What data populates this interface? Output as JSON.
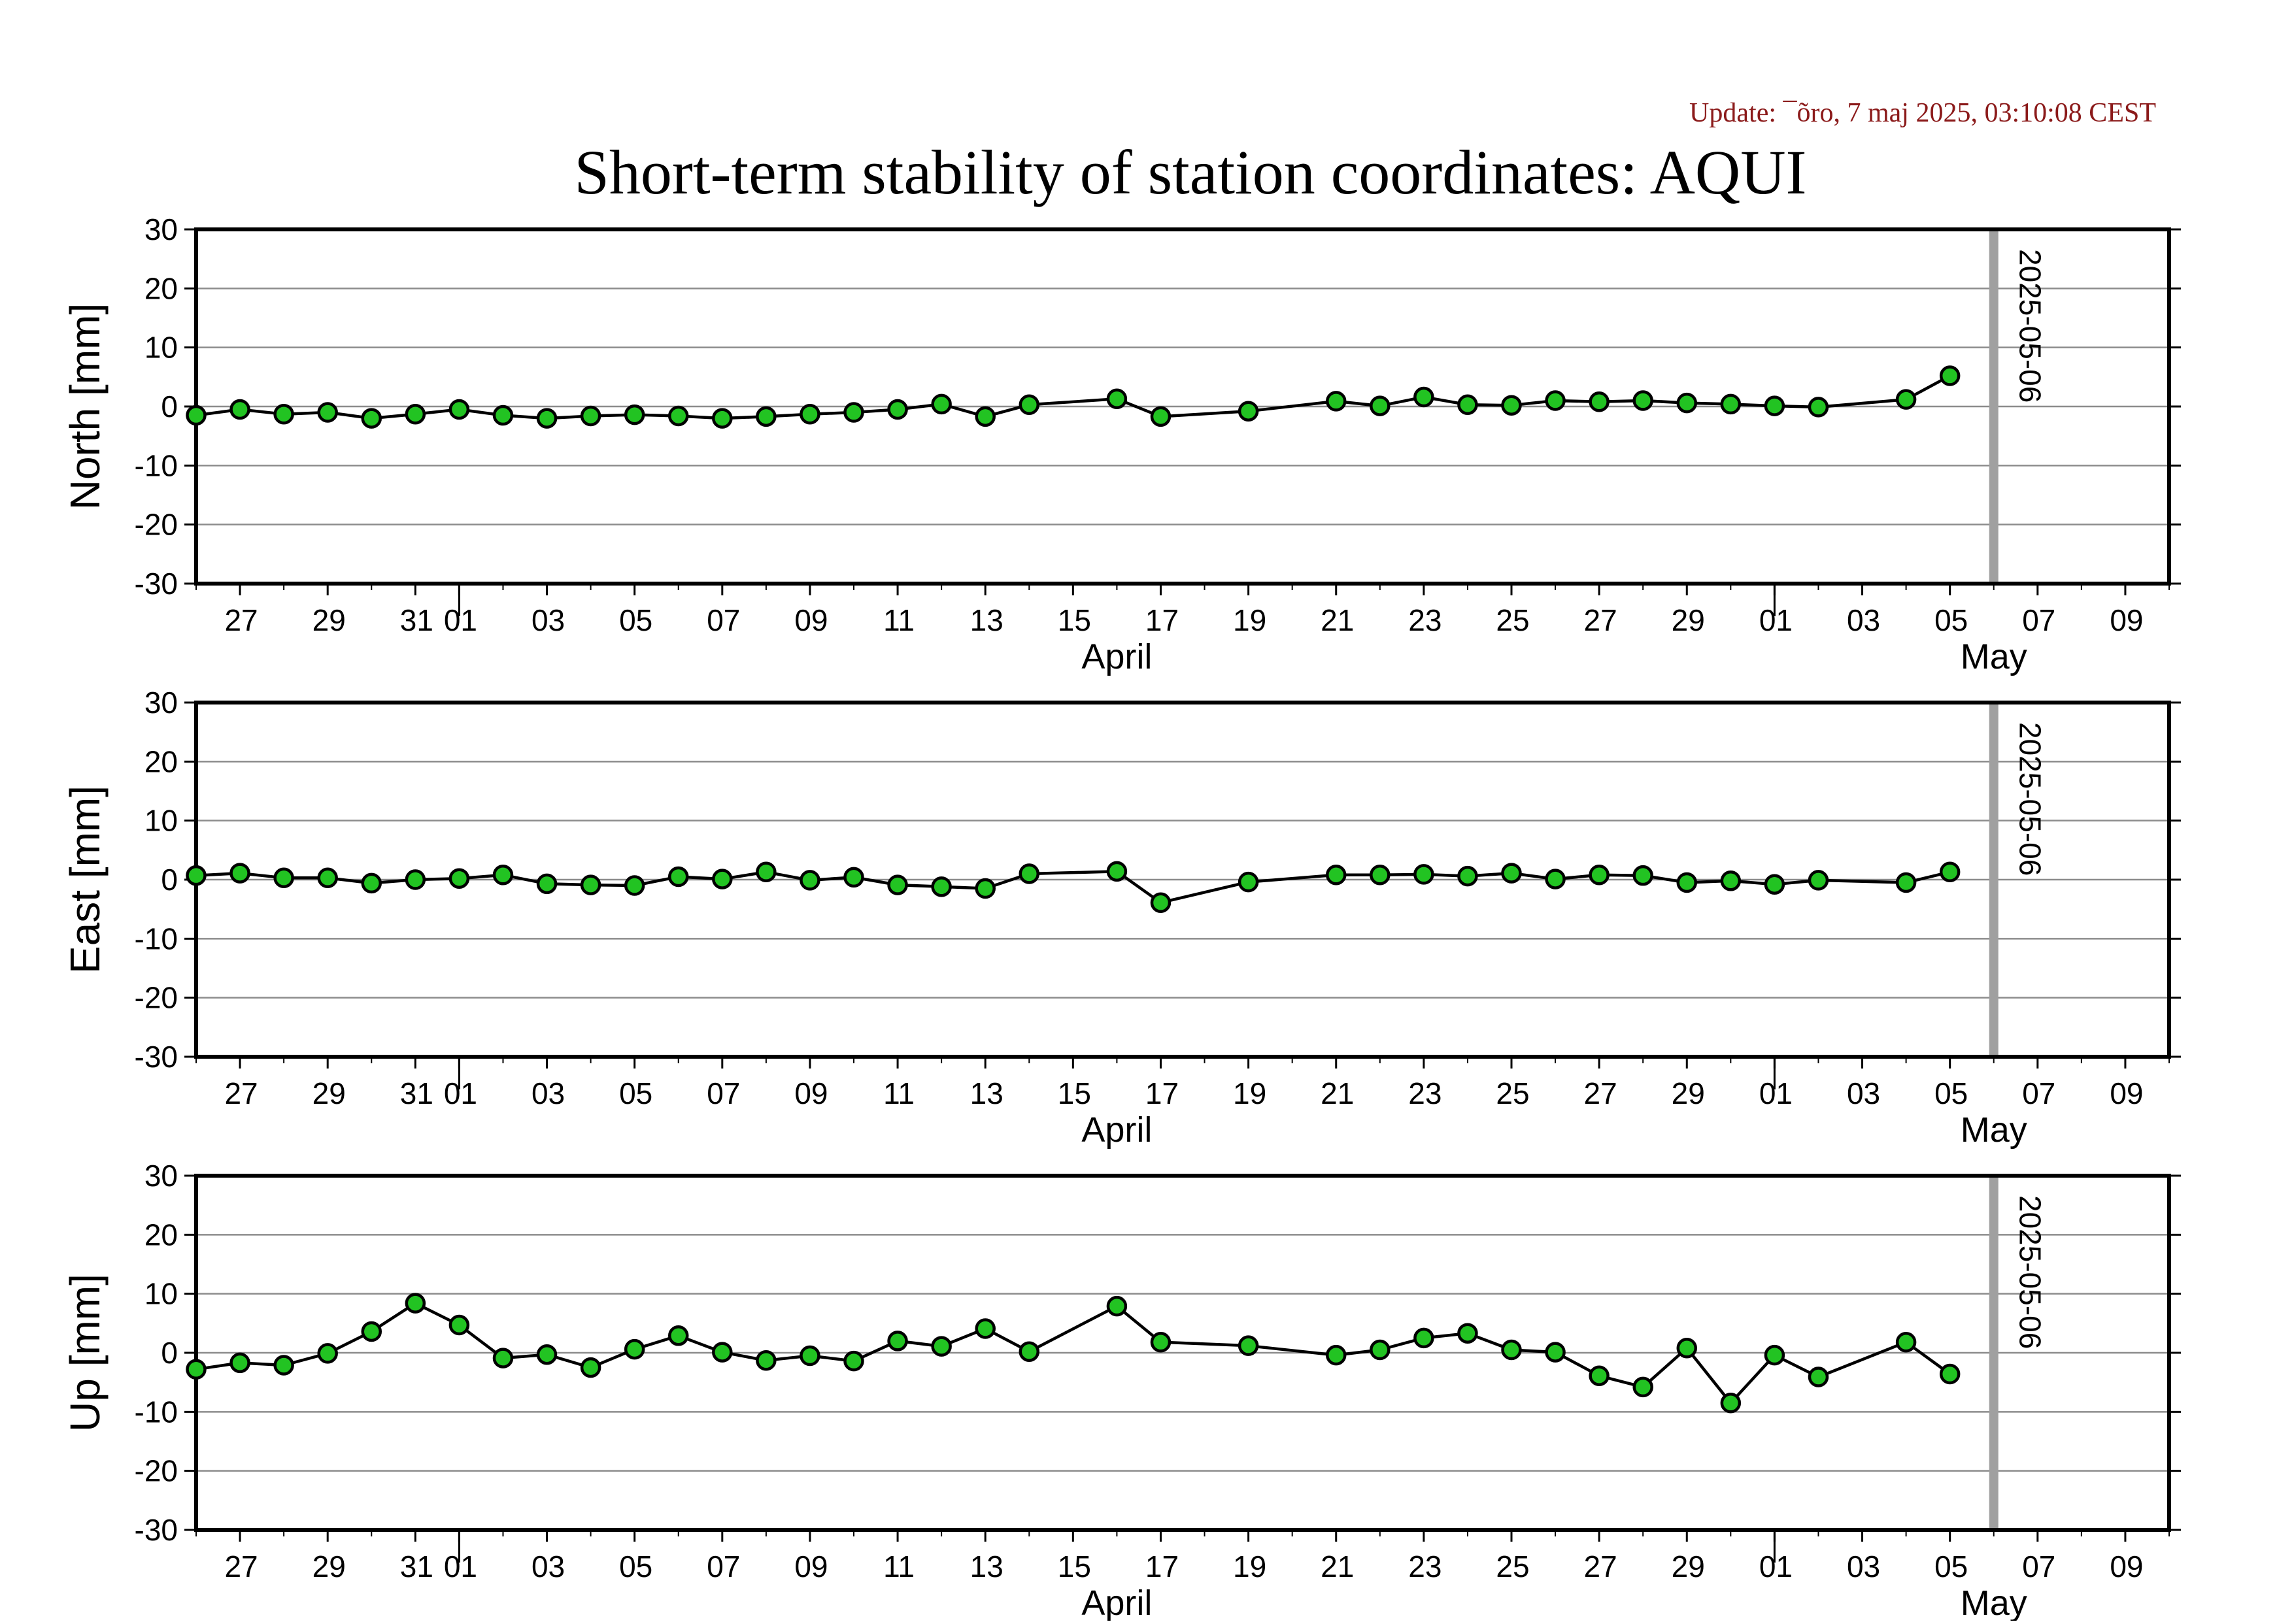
{
  "update_text": "Update: ¯õro, 7 maj 2025, 03:10:08 CEST",
  "title": "Short-term stability of station coordinates: AQUI",
  "colors": {
    "marker_fill": "#22c322",
    "marker_stroke": "#000000",
    "line": "#000000",
    "gridline": "#8c8c8c",
    "vline": "#a0a0a0",
    "update": "#8B1A1A"
  },
  "chart_data": [
    {
      "type": "line",
      "ylabel": "North [mm]",
      "ylim": [
        -30,
        30
      ],
      "yticks": [
        -30,
        -20,
        -10,
        0,
        10,
        20,
        30
      ],
      "xlim": [
        "2025-03-26",
        "2025-05-10"
      ],
      "grid": "horizontal",
      "x": [
        "2025-03-26",
        "2025-03-27",
        "2025-03-28",
        "2025-03-29",
        "2025-03-30",
        "2025-03-31",
        "2025-04-01",
        "2025-04-02",
        "2025-04-03",
        "2025-04-04",
        "2025-04-05",
        "2025-04-06",
        "2025-04-07",
        "2025-04-08",
        "2025-04-09",
        "2025-04-10",
        "2025-04-11",
        "2025-04-12",
        "2025-04-13",
        "2025-04-14",
        "2025-04-16",
        "2025-04-17",
        "2025-04-19",
        "2025-04-21",
        "2025-04-22",
        "2025-04-23",
        "2025-04-24",
        "2025-04-25",
        "2025-04-26",
        "2025-04-27",
        "2025-04-28",
        "2025-04-29",
        "2025-04-30",
        "2025-05-01",
        "2025-05-02",
        "2025-05-04",
        "2025-05-05"
      ],
      "y": [
        -1.5,
        -0.5,
        -1.3,
        -1.0,
        -2.0,
        -1.3,
        -0.5,
        -1.5,
        -2.0,
        -1.6,
        -1.4,
        -1.6,
        -2.0,
        -1.7,
        -1.3,
        -1.0,
        -0.5,
        0.4,
        -1.7,
        0.3,
        1.3,
        -1.7,
        -0.8,
        0.9,
        0.1,
        1.6,
        0.3,
        0.2,
        1.0,
        0.8,
        1.0,
        0.6,
        0.4,
        0.1,
        -0.1,
        1.2,
        5.2
      ]
    },
    {
      "type": "line",
      "ylabel": "East [mm]",
      "ylim": [
        -30,
        30
      ],
      "yticks": [
        -30,
        -20,
        -10,
        0,
        10,
        20,
        30
      ],
      "xlim": [
        "2025-03-26",
        "2025-05-10"
      ],
      "grid": "horizontal",
      "x": [
        "2025-03-26",
        "2025-03-27",
        "2025-03-28",
        "2025-03-29",
        "2025-03-30",
        "2025-03-31",
        "2025-04-01",
        "2025-04-02",
        "2025-04-03",
        "2025-04-04",
        "2025-04-05",
        "2025-04-06",
        "2025-04-07",
        "2025-04-08",
        "2025-04-09",
        "2025-04-10",
        "2025-04-11",
        "2025-04-12",
        "2025-04-13",
        "2025-04-14",
        "2025-04-16",
        "2025-04-17",
        "2025-04-19",
        "2025-04-21",
        "2025-04-22",
        "2025-04-23",
        "2025-04-24",
        "2025-04-25",
        "2025-04-26",
        "2025-04-27",
        "2025-04-28",
        "2025-04-29",
        "2025-04-30",
        "2025-05-01",
        "2025-05-02",
        "2025-05-04",
        "2025-05-05"
      ],
      "y": [
        0.7,
        1.1,
        0.3,
        0.3,
        -0.6,
        0.0,
        0.2,
        0.8,
        -0.7,
        -0.9,
        -1.0,
        0.5,
        0.1,
        1.3,
        -0.1,
        0.4,
        -0.9,
        -1.2,
        -1.5,
        1.0,
        1.4,
        -3.9,
        -0.4,
        0.8,
        0.8,
        0.9,
        0.6,
        1.1,
        0.1,
        0.8,
        0.7,
        -0.5,
        -0.2,
        -0.8,
        -0.1,
        -0.5,
        1.3
      ]
    },
    {
      "type": "line",
      "ylabel": "Up [mm]",
      "ylim": [
        -30,
        30
      ],
      "yticks": [
        -30,
        -20,
        -10,
        0,
        10,
        20,
        30
      ],
      "xlim": [
        "2025-03-26",
        "2025-05-10"
      ],
      "grid": "horizontal",
      "x": [
        "2025-03-26",
        "2025-03-27",
        "2025-03-28",
        "2025-03-29",
        "2025-03-30",
        "2025-03-31",
        "2025-04-01",
        "2025-04-02",
        "2025-04-03",
        "2025-04-04",
        "2025-04-05",
        "2025-04-06",
        "2025-04-07",
        "2025-04-08",
        "2025-04-09",
        "2025-04-10",
        "2025-04-11",
        "2025-04-12",
        "2025-04-13",
        "2025-04-14",
        "2025-04-16",
        "2025-04-17",
        "2025-04-19",
        "2025-04-21",
        "2025-04-22",
        "2025-04-23",
        "2025-04-24",
        "2025-04-25",
        "2025-04-26",
        "2025-04-27",
        "2025-04-28",
        "2025-04-29",
        "2025-04-30",
        "2025-05-01",
        "2025-05-02",
        "2025-05-04",
        "2025-05-05"
      ],
      "y": [
        -2.8,
        -1.7,
        -2.1,
        -0.1,
        3.6,
        8.4,
        4.7,
        -0.9,
        -0.3,
        -2.5,
        0.6,
        2.9,
        0.1,
        -1.3,
        -0.5,
        -1.4,
        2.0,
        1.1,
        4.1,
        0.2,
        7.9,
        1.8,
        1.2,
        -0.4,
        0.5,
        2.5,
        3.3,
        0.5,
        0.1,
        -3.9,
        -5.8,
        0.8,
        -8.5,
        -0.4,
        -4.1,
        1.8,
        -3.6
      ]
    }
  ],
  "x_axis": {
    "tick_labels": [
      "27",
      "29",
      "31",
      "01",
      "03",
      "05",
      "07",
      "09",
      "11",
      "13",
      "15",
      "17",
      "19",
      "21",
      "23",
      "25",
      "27",
      "29",
      "01",
      "03",
      "05",
      "07",
      "09"
    ],
    "tick_dates": [
      "2025-03-27",
      "2025-03-29",
      "2025-03-31",
      "2025-04-01",
      "2025-04-03",
      "2025-04-05",
      "2025-04-07",
      "2025-04-09",
      "2025-04-11",
      "2025-04-13",
      "2025-04-15",
      "2025-04-17",
      "2025-04-19",
      "2025-04-21",
      "2025-04-23",
      "2025-04-25",
      "2025-04-27",
      "2025-04-29",
      "2025-05-01",
      "2025-05-03",
      "2025-05-05",
      "2025-05-07",
      "2025-05-09"
    ],
    "months": [
      {
        "label": "April",
        "date": "2025-04-16"
      },
      {
        "label": "May",
        "date": "2025-05-06"
      }
    ],
    "month_boundaries": [
      "2025-04-01",
      "2025-05-01"
    ]
  },
  "marker_line": {
    "date": "2025-05-06",
    "label": "2025-05-06"
  }
}
